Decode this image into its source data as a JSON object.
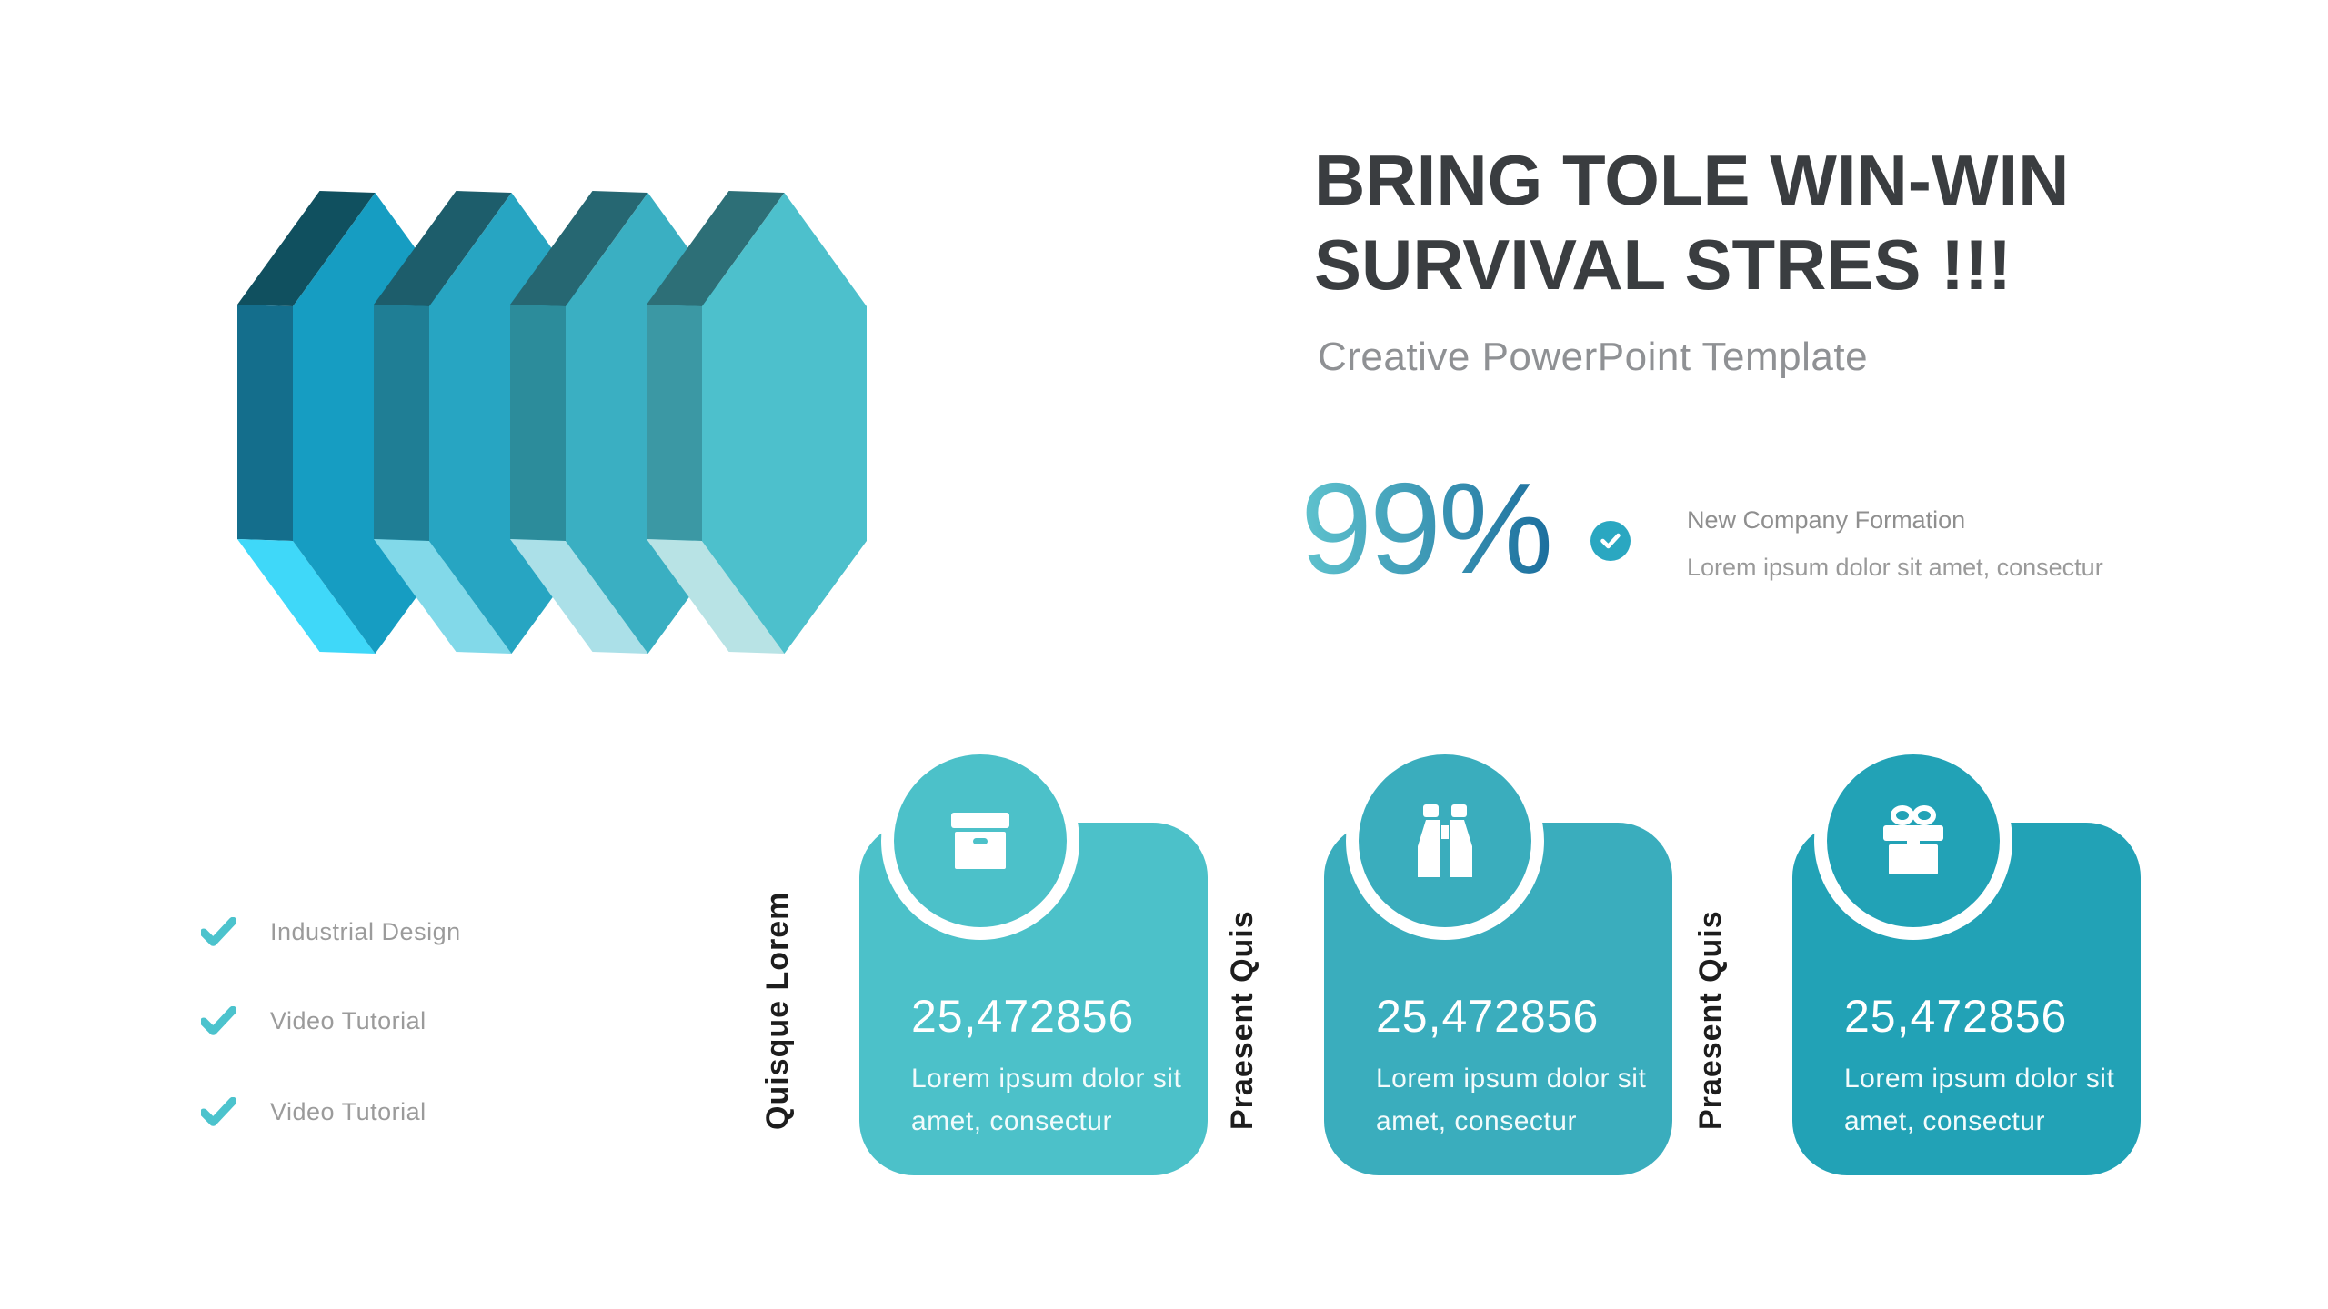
{
  "slide": {
    "title_line1": "BRING TOLE WIN-WIN",
    "title_line2": "SURVIVAL STRES !!!",
    "subtitle": "Creative PowerPoint Template",
    "title_color": "#3a3d40",
    "background": "#ffffff"
  },
  "stat": {
    "value": "99%",
    "gradient_from": "#5fc3ce",
    "gradient_to": "#1d6f9e",
    "badge_icon": "check-icon",
    "badge_color": "#2aa7c1",
    "label_title": "New Company Formation",
    "label_desc": "Lorem ipsum dolor sit amet, consectur"
  },
  "checklist": {
    "check_icon": "check-icon",
    "check_color": "#4cc3cd",
    "items": [
      "Industrial Design",
      "Video Tutorial",
      "Video Tutorial"
    ]
  },
  "cards": [
    {
      "side_label": "Quisque Lorem",
      "icon": "archive-box-icon",
      "value": "25,472856",
      "desc": "Lorem ipsum dolor sit amet, consectur",
      "color": "#4cc1c9"
    },
    {
      "side_label": "Praesent Quis",
      "icon": "binoculars-icon",
      "value": "25,472856",
      "desc": "Lorem ipsum dolor sit amet, consectur",
      "color": "#3aadbd"
    },
    {
      "side_label": "Praesent Quis",
      "icon": "gift-icon",
      "value": "25,472856",
      "desc": "Lorem ipsum dolor sit amet, consectur",
      "color": "#22a2b6"
    }
  ],
  "graphic": {
    "name": "layered-arrow-prisms",
    "prisms": [
      {
        "roof": "#10505f",
        "side": "#146e8c",
        "front": "#169dc2",
        "bottom": "#3fd8f9"
      },
      {
        "roof": "#1d5d6b",
        "side": "#1f7e95",
        "front": "#27a5c2",
        "bottom": "#82d9e9"
      },
      {
        "roof": "#266772",
        "side": "#2c8c9b",
        "front": "#3aafc2",
        "bottom": "#abe0e8"
      },
      {
        "roof": "#2d6f77",
        "side": "#3b98a4",
        "front": "#4dc0cc",
        "bottom": "#b8e3e5"
      }
    ]
  }
}
